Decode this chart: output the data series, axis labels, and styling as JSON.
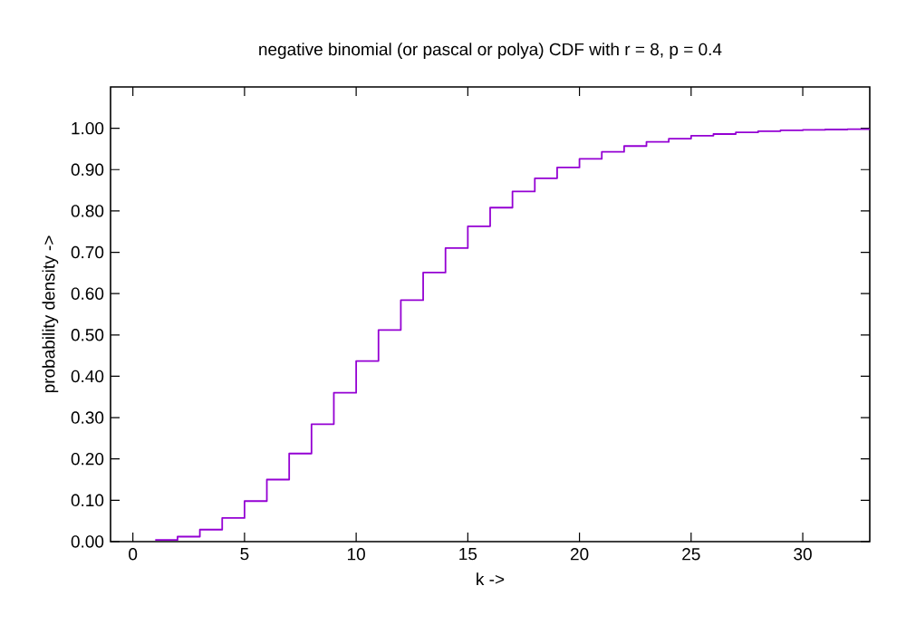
{
  "chart_data": {
    "type": "step",
    "title": "negative binomial (or pascal or polya) CDF with r = 8, p = 0.4",
    "xlabel": "k ->",
    "ylabel": "probability density ->",
    "x": [
      1,
      2,
      3,
      4,
      5,
      6,
      7,
      8,
      9,
      10,
      11,
      12,
      13,
      14,
      15,
      16,
      17,
      18,
      19,
      20,
      21,
      22,
      23,
      24,
      25,
      26,
      27,
      28,
      29,
      30,
      31,
      32,
      33
    ],
    "values": [
      0.004,
      0.012,
      0.029,
      0.057,
      0.098,
      0.15,
      0.213,
      0.284,
      0.36,
      0.437,
      0.512,
      0.584,
      0.651,
      0.71,
      0.763,
      0.808,
      0.847,
      0.879,
      0.905,
      0.926,
      0.943,
      0.957,
      0.967,
      0.975,
      0.982,
      0.986,
      0.99,
      0.993,
      0.995,
      0.996,
      0.997,
      0.998,
      0.999
    ],
    "color": "#9400d3",
    "xlim": [
      -1,
      33
    ],
    "ylim": [
      0,
      1.1
    ],
    "xticks": [
      0,
      5,
      10,
      15,
      20,
      25,
      30
    ],
    "yticks": [
      {
        "value": 0,
        "label": "0.00"
      },
      {
        "value": 0.1,
        "label": "0.10"
      },
      {
        "value": 0.2,
        "label": "0.20"
      },
      {
        "value": 0.3,
        "label": "0.30"
      },
      {
        "value": 0.4,
        "label": "0.40"
      },
      {
        "value": 0.5,
        "label": "0.50"
      },
      {
        "value": 0.6,
        "label": "0.60"
      },
      {
        "value": 0.7,
        "label": "0.70"
      },
      {
        "value": 0.8,
        "label": "0.80"
      },
      {
        "value": 0.9,
        "label": "0.90"
      },
      {
        "value": 1.0,
        "label": "1.00"
      }
    ]
  }
}
